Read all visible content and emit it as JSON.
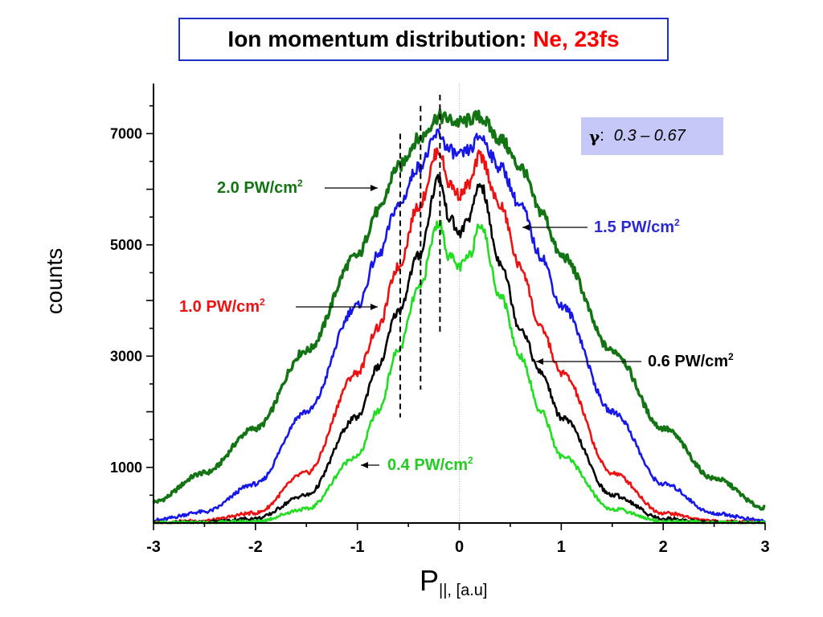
{
  "title": {
    "main": "Ion momentum distribution:",
    "accent": "Ne, 23fs"
  },
  "gamma_box": {
    "symbol": "γ",
    "colon": ":",
    "range": "0.3 – 0.67"
  },
  "colors": {
    "title_border": "#1f2fc6",
    "title_accent": "#ff0000",
    "gamma_box_bg": "#c5c7f7",
    "series_2_0": "#137413",
    "series_1_5": "#1717e8",
    "series_1_0": "#ee1111",
    "series_0_6": "#000000",
    "series_0_4": "#22dd22"
  },
  "chart_data": {
    "type": "line",
    "xlabel_main": "P",
    "xlabel_sub": "||, [a.u]",
    "ylabel": "counts",
    "xlim": [
      -3,
      3
    ],
    "ylim": [
      0,
      7900
    ],
    "xticks": [
      -3,
      -2,
      -1,
      0,
      1,
      2,
      3
    ],
    "xtick_labels": [
      "-3",
      "-2",
      "-1",
      "0",
      "1",
      "2",
      "3"
    ],
    "yticks": [
      1000,
      3000,
      5000,
      7000
    ],
    "ytick_labels": [
      "1000",
      "3000",
      "5000",
      "7000"
    ],
    "grid": false,
    "zero_line": true,
    "dashed_markers": [
      {
        "x": -0.58,
        "y_range": [
          1900,
          7000
        ]
      },
      {
        "x": -0.38,
        "y_range": [
          2400,
          7500
        ]
      },
      {
        "x": -0.19,
        "y_range": [
          3400,
          7700
        ]
      }
    ],
    "series": [
      {
        "name": "2.0 PW/cm²",
        "label_main": "2.0 PW/cm",
        "color": "#137413",
        "x": [
          -3.0,
          -2.5,
          -2.0,
          -1.5,
          -1.0,
          -0.8,
          -0.6,
          -0.4,
          -0.2,
          0.0,
          0.2,
          0.4,
          0.6,
          0.8,
          1.0,
          1.5,
          2.0,
          2.5,
          3.0
        ],
        "values": [
          380,
          900,
          1700,
          3100,
          4800,
          5600,
          6400,
          6900,
          7300,
          7200,
          7300,
          6900,
          6400,
          5600,
          4800,
          3100,
          1700,
          800,
          270
        ]
      },
      {
        "name": "1.5 PW/cm²",
        "label_main": "1.5 PW/cm",
        "color": "#1717e8",
        "x": [
          -3.0,
          -2.5,
          -2.0,
          -1.5,
          -1.0,
          -0.8,
          -0.6,
          -0.4,
          -0.2,
          -0.1,
          0.0,
          0.1,
          0.2,
          0.4,
          0.6,
          0.8,
          1.0,
          1.5,
          2.0,
          2.5,
          3.0
        ],
        "values": [
          50,
          200,
          700,
          2000,
          3900,
          4800,
          5700,
          6400,
          7000,
          6700,
          6600,
          6700,
          6950,
          6400,
          5700,
          4800,
          3900,
          2000,
          700,
          170,
          40
        ]
      },
      {
        "name": "1.0 PW/cm²",
        "label_main": "1.0 PW/cm",
        "color": "#ee1111",
        "x": [
          -3.0,
          -2.5,
          -2.0,
          -1.5,
          -1.0,
          -0.8,
          -0.6,
          -0.4,
          -0.2,
          -0.1,
          0.0,
          0.1,
          0.2,
          0.4,
          0.6,
          0.8,
          1.0,
          1.5,
          2.0,
          2.5,
          3.0
        ],
        "values": [
          5,
          40,
          180,
          900,
          2700,
          3500,
          4600,
          5700,
          6700,
          6100,
          5900,
          6100,
          6600,
          5700,
          4600,
          3500,
          2700,
          900,
          180,
          30,
          5
        ]
      },
      {
        "name": "0.6 PW/cm²",
        "label_main": "0.6 PW/cm",
        "color": "#000000",
        "x": [
          -3.0,
          -2.5,
          -2.0,
          -1.5,
          -1.0,
          -0.8,
          -0.6,
          -0.4,
          -0.2,
          -0.1,
          0.0,
          0.1,
          0.2,
          0.4,
          0.6,
          0.8,
          1.0,
          1.5,
          2.0,
          2.5,
          3.0
        ],
        "values": [
          0,
          15,
          80,
          500,
          1900,
          2800,
          3800,
          4800,
          6200,
          5500,
          5200,
          5500,
          6100,
          4700,
          3500,
          2700,
          1900,
          500,
          80,
          10,
          0
        ]
      },
      {
        "name": "0.4 PW/cm²",
        "label_main": "0.4 PW/cm",
        "color": "#22dd22",
        "x": [
          -3.0,
          -2.5,
          -2.0,
          -1.5,
          -1.0,
          -0.8,
          -0.6,
          -0.4,
          -0.2,
          -0.1,
          0.0,
          0.1,
          0.2,
          0.4,
          0.6,
          0.8,
          1.0,
          1.5,
          2.0,
          2.5,
          3.0
        ],
        "values": [
          0,
          5,
          30,
          250,
          1200,
          2000,
          3100,
          4200,
          5400,
          4800,
          4600,
          4800,
          5400,
          4100,
          3000,
          2000,
          1200,
          250,
          30,
          5,
          0
        ]
      }
    ],
    "annotations": [
      {
        "series": "2.0 PW/cm²",
        "text_main": "2.0 PW/cm",
        "text_sup": "2",
        "color": "#137413"
      },
      {
        "series": "1.5 PW/cm²",
        "text_main": "1.5 PW/cm",
        "text_sup": "2",
        "color": "#2a2ad0"
      },
      {
        "series": "1.0 PW/cm²",
        "text_main": "1.0 PW/cm",
        "text_sup": "2",
        "color": "#ee1111"
      },
      {
        "series": "0.6 PW/cm²",
        "text_main": "0.6 PW/cm",
        "text_sup": "2",
        "color": "#000000"
      },
      {
        "series": "0.4 PW/cm²",
        "text_main": "0.4 PW/cm",
        "text_sup": "2",
        "color": "#22cc22"
      }
    ]
  }
}
